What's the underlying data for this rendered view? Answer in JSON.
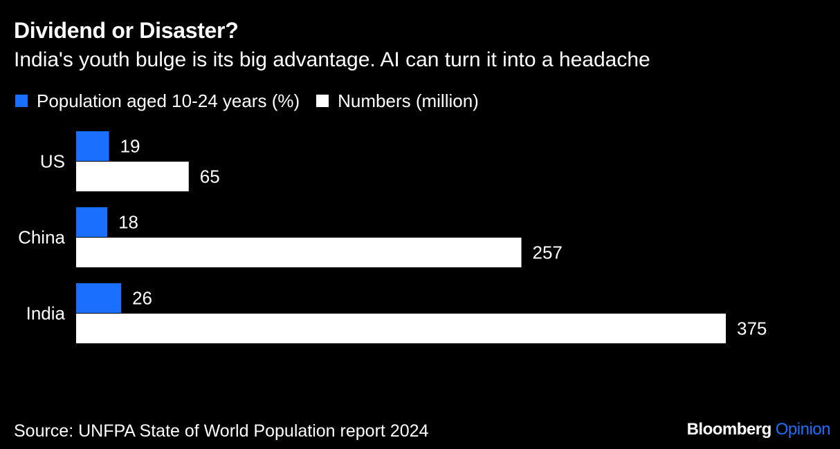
{
  "header": {
    "title": "Dividend or Disaster?",
    "subtitle": "India's youth bulge is its big advantage. AI can turn it into a headache"
  },
  "legend": {
    "items": [
      {
        "label": "Population aged 10-24 years (%)",
        "color": "#1a6fff"
      },
      {
        "label": "Numbers (million)",
        "color": "#ffffff"
      }
    ]
  },
  "chart_data": {
    "type": "bar",
    "orientation": "horizontal",
    "categories": [
      "US",
      "China",
      "India"
    ],
    "series": [
      {
        "name": "Population aged 10-24 years (%)",
        "values": [
          19,
          18,
          26
        ],
        "color": "#1a6fff"
      },
      {
        "name": "Numbers (million)",
        "values": [
          65,
          257,
          375
        ],
        "color": "#ffffff"
      }
    ],
    "xlim": [
      0,
      375
    ],
    "grid": false,
    "data_labels": true,
    "legend_position": "top-left"
  },
  "footer": {
    "source": "Source: UNFPA State of World Population report 2024",
    "brand_name": "Bloomberg",
    "brand_sub": "Opinion",
    "brand_sub_color": "#1a6fff"
  }
}
